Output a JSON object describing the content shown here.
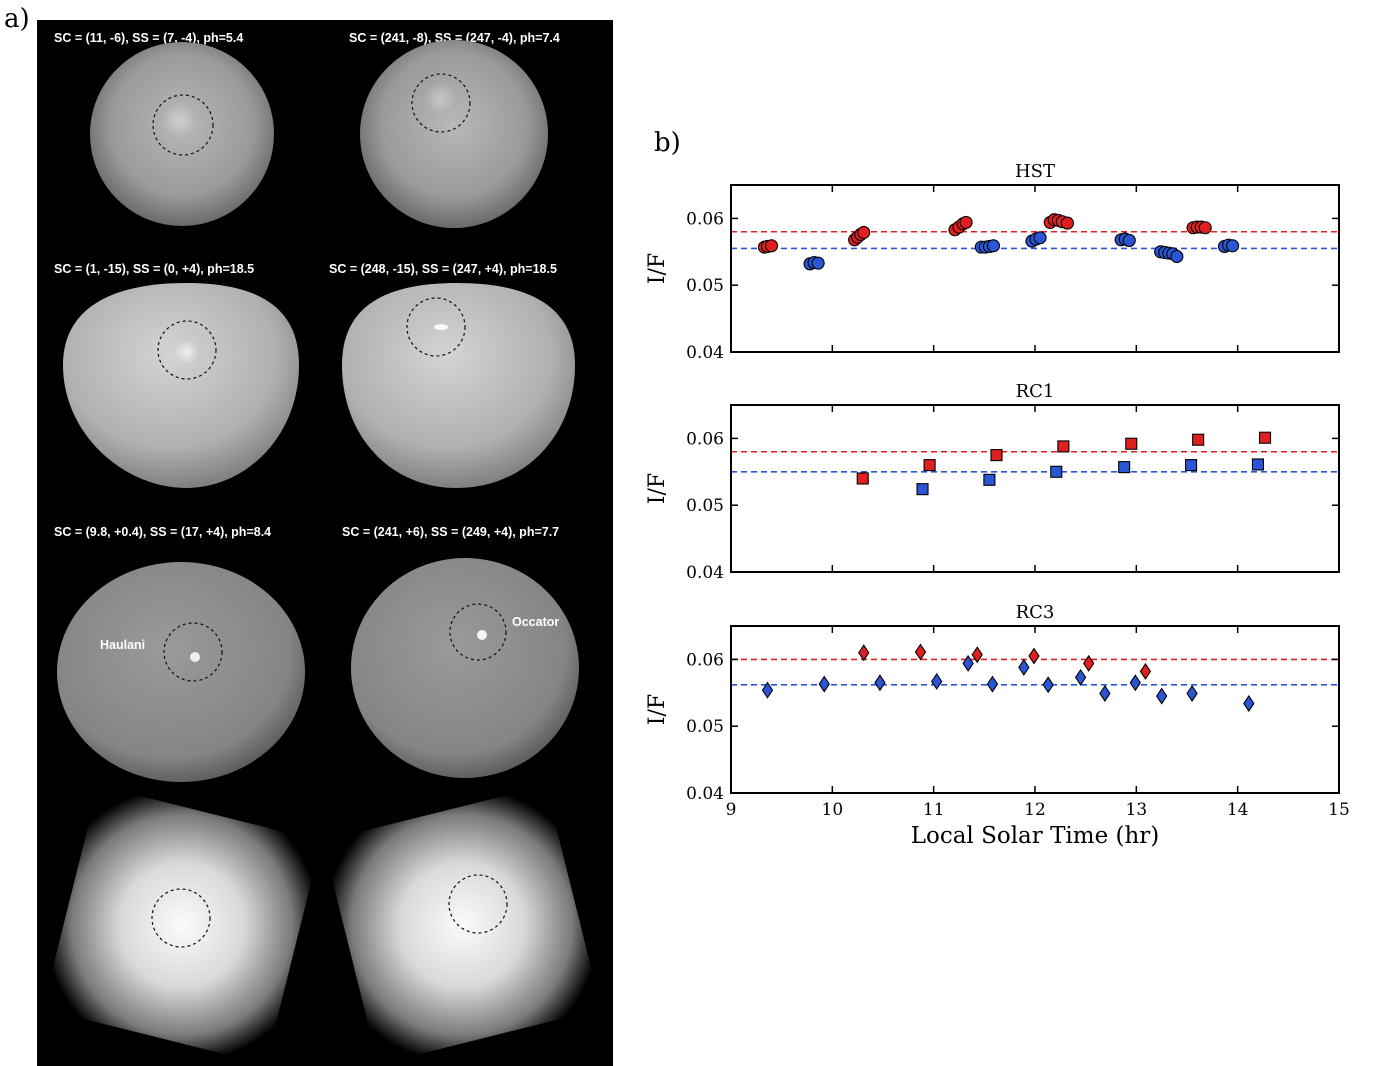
{
  "panel_a": {
    "label": "a)",
    "captions": [
      "SC = (11, -6), SS = (7, -4), ph=5.4",
      "SC = (241, -8), SS = (247, -4), ph=7.4",
      "SC = (1, -15), SS = (0, +4), ph=18.5",
      "SC = (248, -15), SS = (247, +4), ph=18.5",
      "SC = (9.8, +0.4), SS = (17, +4), ph=8.4",
      "SC = (241, +6), SS = (249, +4), ph=7.7"
    ],
    "annotations": [
      "Haulani",
      "Occator"
    ]
  },
  "panel_b": {
    "label": "b)"
  },
  "chart_data": [
    {
      "type": "scatter",
      "title": "HST",
      "ylabel": "I/F",
      "xlabel": "",
      "xlim": [
        9,
        15
      ],
      "ylim": [
        0.04,
        0.065
      ],
      "yticks": [
        "0.04",
        "0.05",
        "0.06"
      ],
      "marker": "circle",
      "reference_lines": [
        {
          "y": 0.058,
          "color": "#e02020"
        },
        {
          "y": 0.0555,
          "color": "#2a56d6"
        }
      ],
      "series": [
        {
          "color": "#e02020",
          "points": [
            [
              9.33,
              0.0557
            ],
            [
              9.36,
              0.0558
            ],
            [
              9.4,
              0.0559
            ],
            [
              10.22,
              0.0568
            ],
            [
              10.25,
              0.0572
            ],
            [
              10.28,
              0.0576
            ],
            [
              10.31,
              0.0579
            ],
            [
              11.21,
              0.0583
            ],
            [
              11.25,
              0.0587
            ],
            [
              11.29,
              0.0592
            ],
            [
              11.32,
              0.0594
            ],
            [
              12.15,
              0.0594
            ],
            [
              12.19,
              0.0598
            ],
            [
              12.23,
              0.0597
            ],
            [
              12.27,
              0.0595
            ],
            [
              12.32,
              0.0593
            ],
            [
              13.56,
              0.0586
            ],
            [
              13.6,
              0.0587
            ],
            [
              13.64,
              0.0587
            ],
            [
              13.68,
              0.0586
            ]
          ]
        },
        {
          "color": "#2a56d6",
          "points": [
            [
              9.78,
              0.0532
            ],
            [
              9.82,
              0.0534
            ],
            [
              9.86,
              0.0533
            ],
            [
              11.47,
              0.0557
            ],
            [
              11.51,
              0.0557
            ],
            [
              11.55,
              0.0558
            ],
            [
              11.59,
              0.0559
            ],
            [
              11.97,
              0.0566
            ],
            [
              12.01,
              0.0569
            ],
            [
              12.05,
              0.0571
            ],
            [
              12.85,
              0.0568
            ],
            [
              12.89,
              0.0569
            ],
            [
              12.93,
              0.0567
            ],
            [
              13.24,
              0.055
            ],
            [
              13.28,
              0.0549
            ],
            [
              13.32,
              0.0548
            ],
            [
              13.36,
              0.0547
            ],
            [
              13.4,
              0.0543
            ],
            [
              13.87,
              0.0558
            ],
            [
              13.91,
              0.056
            ],
            [
              13.95,
              0.0559
            ]
          ]
        }
      ]
    },
    {
      "type": "scatter",
      "title": "RC1",
      "ylabel": "I/F",
      "xlabel": "",
      "xlim": [
        9,
        15
      ],
      "ylim": [
        0.04,
        0.065
      ],
      "yticks": [
        "0.04",
        "0.05",
        "0.06"
      ],
      "marker": "square",
      "reference_lines": [
        {
          "y": 0.058,
          "color": "#e02020"
        },
        {
          "y": 0.055,
          "color": "#2a56d6"
        }
      ],
      "series": [
        {
          "color": "#e02020",
          "points": [
            [
              10.3,
              0.054
            ],
            [
              10.96,
              0.056
            ],
            [
              11.62,
              0.0575
            ],
            [
              12.28,
              0.0588
            ],
            [
              12.95,
              0.0592
            ],
            [
              13.61,
              0.0598
            ],
            [
              14.27,
              0.0601
            ]
          ]
        },
        {
          "color": "#2a56d6",
          "points": [
            [
              10.89,
              0.0524
            ],
            [
              11.55,
              0.0538
            ],
            [
              12.21,
              0.055
            ],
            [
              12.88,
              0.0557
            ],
            [
              13.54,
              0.056
            ],
            [
              14.2,
              0.0561
            ]
          ]
        }
      ]
    },
    {
      "type": "scatter",
      "title": "RC3",
      "ylabel": "I/F",
      "xlabel": "Local Solar Time (hr)",
      "xlim": [
        9,
        15
      ],
      "ylim": [
        0.04,
        0.065
      ],
      "xticks": [
        "9",
        "10",
        "11",
        "12",
        "13",
        "14",
        "15"
      ],
      "yticks": [
        "0.04",
        "0.05",
        "0.06"
      ],
      "marker": "diamond",
      "reference_lines": [
        {
          "y": 0.06,
          "color": "#e02020"
        },
        {
          "y": 0.0562,
          "color": "#2a56d6"
        }
      ],
      "series": [
        {
          "color": "#e02020",
          "points": [
            [
              10.31,
              0.061
            ],
            [
              10.87,
              0.0611
            ],
            [
              11.43,
              0.0607
            ],
            [
              11.99,
              0.0605
            ],
            [
              12.53,
              0.0594
            ],
            [
              13.09,
              0.0582
            ]
          ]
        },
        {
          "color": "#2a56d6",
          "points": [
            [
              9.36,
              0.0554
            ],
            [
              9.92,
              0.0563
            ],
            [
              10.47,
              0.0565
            ],
            [
              11.03,
              0.0567
            ],
            [
              11.34,
              0.0594
            ],
            [
              11.58,
              0.0563
            ],
            [
              11.89,
              0.0588
            ],
            [
              12.13,
              0.0562
            ],
            [
              12.45,
              0.0573
            ],
            [
              12.69,
              0.0549
            ],
            [
              12.99,
              0.0565
            ],
            [
              13.25,
              0.0545
            ],
            [
              13.55,
              0.0549
            ],
            [
              14.11,
              0.0534
            ]
          ]
        }
      ]
    }
  ]
}
